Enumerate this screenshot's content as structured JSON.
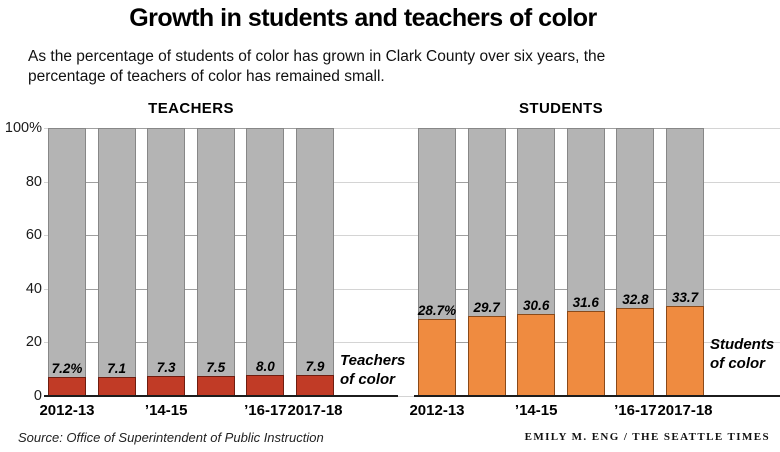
{
  "title": "Growth in students and teachers of color",
  "subtitle": "As the percentage of students of color has grown in Clark County over six years, the\npercentage of teachers of color has remained small.",
  "source": "Source: Office of Superintendent of Public Instruction",
  "credit": "EMILY M. ENG / THE SEATTLE TIMES",
  "chart_data": {
    "type": "bar",
    "ylim": [
      0,
      100
    ],
    "grid": true,
    "y_ticks": [
      {
        "value": 100,
        "label": "100%"
      },
      {
        "value": 80,
        "label": "80"
      },
      {
        "value": 60,
        "label": "60"
      },
      {
        "value": 40,
        "label": "40"
      },
      {
        "value": 20,
        "label": "20"
      },
      {
        "value": 0,
        "label": "0"
      }
    ],
    "colors": {
      "remainder_fill": "#b4b4b4",
      "remainder_border": "#878787",
      "teachers_fill": "#c13b26",
      "teachers_border": "#6e1d10",
      "students_fill": "#ef8b40",
      "students_border": "#8a4a1a",
      "gridline": "#d4d4d4",
      "gap_tick": "#9f9f9f",
      "baseline": "#1c1c1c"
    },
    "panels": [
      {
        "id": "teachers",
        "header": "TEACHERS",
        "bar_fill": "#c13b26",
        "bar_border": "#6e1d10",
        "values": [
          7.2,
          7.1,
          7.3,
          7.5,
          8.0,
          7.9
        ],
        "value_labels": [
          "7.2%",
          "7.1",
          "7.3",
          "7.5",
          "8.0",
          "7.9"
        ],
        "x_labels": [
          {
            "label": "2012-13",
            "bar_index": 0
          },
          {
            "label": "’14-15",
            "bar_index": 2
          },
          {
            "label": "’16-17",
            "bar_index": 4
          },
          {
            "label": "2017-18",
            "bar_index": 5
          }
        ],
        "side_label": "Teachers\nof color"
      },
      {
        "id": "students",
        "header": "STUDENTS",
        "bar_fill": "#ef8b40",
        "bar_border": "#8a4a1a",
        "values": [
          28.7,
          29.7,
          30.6,
          31.6,
          32.8,
          33.7
        ],
        "value_labels": [
          "28.7%",
          "29.7",
          "30.6",
          "31.6",
          "32.8",
          "33.7"
        ],
        "x_labels": [
          {
            "label": "2012-13",
            "bar_index": 0
          },
          {
            "label": "’14-15",
            "bar_index": 2
          },
          {
            "label": "’16-17",
            "bar_index": 4
          },
          {
            "label": "2017-18",
            "bar_index": 5
          }
        ],
        "side_label": "Students\nof color"
      }
    ]
  }
}
